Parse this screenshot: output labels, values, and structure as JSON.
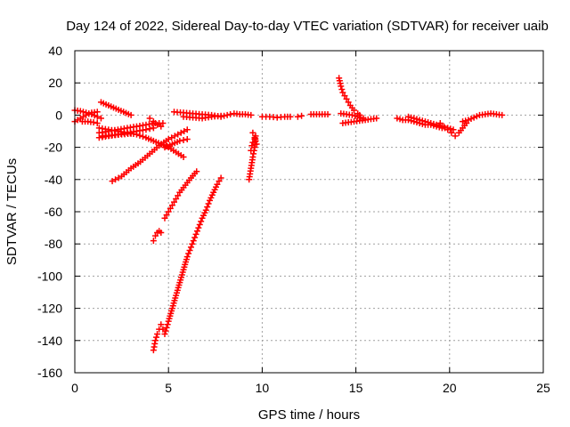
{
  "chart_data": {
    "type": "scatter",
    "title": "Day 124 of 2022, Sidereal Day-to-day VTEC variation (SDTVAR) for receiver uaib",
    "xlabel": "GPS time / hours",
    "ylabel": "SDTVAR / TECUs",
    "xlim": [
      0,
      25
    ],
    "ylim": [
      -160,
      40
    ],
    "xticks": [
      0,
      5,
      10,
      15,
      20,
      25
    ],
    "yticks": [
      40,
      20,
      0,
      -20,
      -40,
      -60,
      -80,
      -100,
      -120,
      -140,
      -160
    ],
    "grid": true,
    "marker": "plus",
    "color": "#ff0000",
    "series": [
      {
        "points": [
          [
            0,
            3
          ],
          [
            0.3,
            2.5
          ],
          [
            0.6,
            1.5
          ],
          [
            0.9,
            0.5
          ],
          [
            1.2,
            -1
          ],
          [
            1.4,
            -2
          ]
        ]
      },
      {
        "points": [
          [
            0,
            -4
          ],
          [
            0.3,
            -2
          ],
          [
            0.6,
            0
          ],
          [
            0.9,
            1.5
          ],
          [
            1.2,
            2
          ]
        ]
      },
      {
        "points": [
          [
            0.4,
            -4
          ],
          [
            0.7,
            -4
          ],
          [
            1.0,
            -4.5
          ],
          [
            1.2,
            -5
          ]
        ]
      },
      {
        "points": [
          [
            1.4,
            8
          ],
          [
            1.8,
            6
          ],
          [
            2.2,
            4
          ],
          [
            2.6,
            2
          ],
          [
            3.0,
            0
          ]
        ]
      },
      {
        "points": [
          [
            1.3,
            -8
          ],
          [
            1.8,
            -9
          ],
          [
            2.3,
            -10
          ],
          [
            2.8,
            -11
          ],
          [
            3.3,
            -12
          ],
          [
            3.8,
            -14
          ],
          [
            4.2,
            -16
          ],
          [
            4.6,
            -18
          ],
          [
            5.0,
            -20
          ],
          [
            5.4,
            -23
          ],
          [
            5.8,
            -26
          ]
        ]
      },
      {
        "points": [
          [
            1.3,
            -11
          ],
          [
            1.8,
            -10
          ],
          [
            2.3,
            -9
          ],
          [
            2.8,
            -8
          ],
          [
            3.3,
            -7
          ],
          [
            3.8,
            -6
          ],
          [
            4.3,
            -5
          ],
          [
            4.7,
            -5
          ]
        ]
      },
      {
        "points": [
          [
            1.3,
            -14
          ],
          [
            1.8,
            -13
          ],
          [
            2.3,
            -12
          ],
          [
            2.8,
            -11
          ],
          [
            3.3,
            -10
          ],
          [
            3.8,
            -9
          ],
          [
            4.2,
            -8
          ]
        ]
      },
      {
        "points": [
          [
            1.5,
            -13
          ],
          [
            2.0,
            -12.5
          ],
          [
            2.5,
            -12
          ],
          [
            3.0,
            -11.5
          ]
        ]
      },
      {
        "points": [
          [
            4.0,
            -2
          ],
          [
            4.2,
            -4
          ],
          [
            4.4,
            -6
          ],
          [
            4.6,
            -7
          ]
        ]
      },
      {
        "points": [
          [
            2.0,
            -41
          ],
          [
            2.5,
            -38
          ],
          [
            3.0,
            -33
          ],
          [
            3.5,
            -29
          ],
          [
            4.0,
            -24
          ],
          [
            4.5,
            -19
          ],
          [
            5.0,
            -15
          ],
          [
            5.5,
            -12
          ],
          [
            6.0,
            -9
          ]
        ]
      },
      {
        "points": [
          [
            4.8,
            -20
          ],
          [
            5.2,
            -18
          ],
          [
            5.6,
            -16
          ],
          [
            6.0,
            -15
          ]
        ]
      },
      {
        "points": [
          [
            4.2,
            -78
          ],
          [
            4.3,
            -75
          ],
          [
            4.4,
            -73
          ],
          [
            4.5,
            -72
          ],
          [
            4.6,
            -73
          ]
        ]
      },
      {
        "points": [
          [
            4.8,
            -64
          ],
          [
            5.0,
            -60
          ],
          [
            5.2,
            -56
          ],
          [
            5.4,
            -52
          ],
          [
            5.6,
            -48
          ],
          [
            5.8,
            -45
          ],
          [
            6.0,
            -42
          ],
          [
            6.2,
            -39
          ],
          [
            6.5,
            -35
          ]
        ]
      },
      {
        "points": [
          [
            4.2,
            -146
          ],
          [
            4.3,
            -140
          ],
          [
            4.4,
            -136
          ],
          [
            4.5,
            -133
          ],
          [
            4.6,
            -130
          ],
          [
            4.7,
            -133
          ],
          [
            4.8,
            -136
          ],
          [
            4.9,
            -132
          ],
          [
            5.0,
            -128
          ],
          [
            5.2,
            -120
          ],
          [
            5.4,
            -112
          ],
          [
            5.6,
            -104
          ],
          [
            5.8,
            -96
          ],
          [
            6.0,
            -88
          ],
          [
            6.2,
            -82
          ],
          [
            6.4,
            -76
          ],
          [
            6.6,
            -70
          ],
          [
            6.8,
            -64
          ],
          [
            7.0,
            -59
          ],
          [
            7.2,
            -53
          ],
          [
            7.4,
            -48
          ],
          [
            7.6,
            -43
          ],
          [
            7.8,
            -39
          ]
        ]
      },
      {
        "points": [
          [
            5.3,
            2
          ],
          [
            5.8,
            1.5
          ],
          [
            6.3,
            1
          ],
          [
            6.8,
            0.5
          ],
          [
            7.3,
            0
          ],
          [
            7.8,
            -1
          ],
          [
            8.3,
            0.5
          ]
        ]
      },
      {
        "points": [
          [
            5.8,
            -1
          ],
          [
            6.3,
            -1.5
          ],
          [
            6.8,
            -2
          ],
          [
            7.3,
            -1
          ],
          [
            7.8,
            -0.5
          ]
        ]
      },
      {
        "points": [
          [
            8.5,
            1
          ],
          [
            8.8,
            0.5
          ],
          [
            9.1,
            0.5
          ],
          [
            9.4,
            0
          ]
        ]
      },
      {
        "points": [
          [
            9.3,
            -40
          ],
          [
            9.4,
            -33
          ],
          [
            9.5,
            -26
          ],
          [
            9.6,
            -20
          ],
          [
            9.65,
            -13
          ]
        ]
      },
      {
        "points": [
          [
            9.4,
            -22
          ],
          [
            9.45,
            -19
          ],
          [
            9.5,
            -17
          ],
          [
            9.6,
            -15
          ]
        ]
      },
      {
        "points": [
          [
            9.5,
            -11
          ],
          [
            9.6,
            -14
          ],
          [
            9.7,
            -18
          ]
        ]
      },
      {
        "points": [
          [
            10,
            -1
          ],
          [
            10.4,
            -1
          ],
          [
            10.8,
            -1.5
          ],
          [
            11.2,
            -1
          ],
          [
            11.5,
            -1
          ]
        ]
      },
      {
        "points": [
          [
            11.9,
            -1
          ],
          [
            12.1,
            -0.5
          ]
        ]
      },
      {
        "points": [
          [
            12.6,
            0.5
          ],
          [
            12.9,
            0.5
          ],
          [
            13.2,
            0.5
          ],
          [
            13.5,
            0.5
          ]
        ]
      },
      {
        "points": [
          [
            14.1,
            23
          ],
          [
            14.2,
            18
          ],
          [
            14.3,
            14
          ],
          [
            14.5,
            10
          ],
          [
            14.7,
            6
          ],
          [
            14.9,
            3
          ],
          [
            15.1,
            1
          ],
          [
            15.2,
            0
          ]
        ]
      },
      {
        "points": [
          [
            14.2,
            1
          ],
          [
            14.5,
            0.5
          ],
          [
            14.8,
            0
          ],
          [
            15.1,
            -1
          ],
          [
            15.4,
            -2
          ]
        ]
      },
      {
        "points": [
          [
            14.3,
            -5
          ],
          [
            14.6,
            -4.5
          ],
          [
            14.9,
            -4
          ],
          [
            15.2,
            -3.5
          ],
          [
            15.5,
            -3
          ],
          [
            15.8,
            -2.5
          ],
          [
            16.1,
            -2
          ]
        ]
      },
      {
        "points": [
          [
            17.2,
            -2
          ],
          [
            17.5,
            -3
          ],
          [
            17.8,
            -3
          ],
          [
            18.1,
            -4
          ],
          [
            18.4,
            -5
          ],
          [
            18.7,
            -6
          ],
          [
            19.0,
            -6
          ],
          [
            19.3,
            -7
          ],
          [
            19.6,
            -8
          ],
          [
            19.9,
            -8
          ],
          [
            20.2,
            -9
          ]
        ]
      },
      {
        "points": [
          [
            17.8,
            -1
          ],
          [
            18.1,
            -2
          ],
          [
            18.4,
            -3
          ],
          [
            18.7,
            -4
          ],
          [
            19.0,
            -5
          ],
          [
            19.3,
            -6
          ],
          [
            19.6,
            -7
          ]
        ]
      },
      {
        "points": [
          [
            19.5,
            -5
          ],
          [
            19.7,
            -7
          ],
          [
            19.9,
            -9
          ],
          [
            20.1,
            -11
          ],
          [
            20.3,
            -13
          ],
          [
            20.5,
            -11
          ],
          [
            20.7,
            -8
          ],
          [
            20.9,
            -5
          ]
        ]
      },
      {
        "points": [
          [
            20.7,
            -4
          ],
          [
            21.0,
            -3
          ],
          [
            21.3,
            -1.5
          ],
          [
            21.6,
            0
          ],
          [
            21.9,
            0.5
          ],
          [
            22.2,
            1
          ],
          [
            22.5,
            0.5
          ],
          [
            22.8,
            0
          ]
        ]
      }
    ]
  }
}
